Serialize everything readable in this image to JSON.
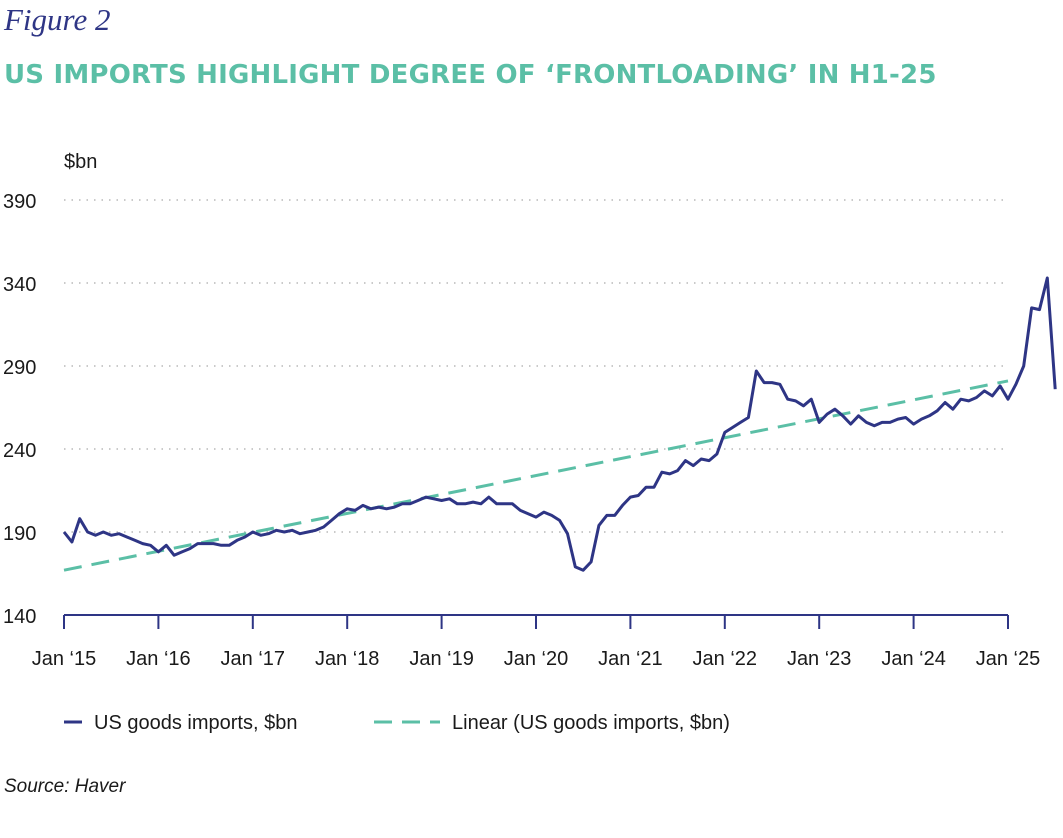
{
  "figure_label": "Figure 2",
  "title": "US IMPORTS HIGHLIGHT DEGREE OF ‘FRONTLOADING’ IN H1-25",
  "source": "Source: Haver",
  "colors": {
    "series": "#2e3585",
    "trend": "#5bbfa6",
    "grid": "#b8b8b8",
    "axis": "#2e3585"
  },
  "chart_data": {
    "type": "line",
    "ylabel": "$bn",
    "ylim": [
      140,
      390
    ],
    "yticks": [
      140,
      190,
      240,
      290,
      340,
      390
    ],
    "x_tick_labels": [
      "Jan ‘15",
      "Jan ‘16",
      "Jan ‘17",
      "Jan ‘18",
      "Jan ‘19",
      "Jan ‘20",
      "Jan ‘21",
      "Jan ‘22",
      "Jan ‘23",
      "Jan ‘24",
      "Jan ‘25"
    ],
    "x_tick_years": [
      2015,
      2016,
      2017,
      2018,
      2019,
      2020,
      2021,
      2022,
      2023,
      2024,
      2025
    ],
    "legend": [
      "US goods imports, $bn",
      "Linear (US goods imports, $bn)"
    ],
    "series": [
      {
        "name": "US goods imports, $bn",
        "style": "solid",
        "start": "2015-01",
        "values": [
          190,
          184,
          198,
          190,
          188,
          190,
          188,
          189,
          187,
          185,
          183,
          182,
          178,
          182,
          176,
          178,
          180,
          183,
          183,
          183,
          182,
          182,
          185,
          187,
          190,
          188,
          189,
          191,
          190,
          191,
          189,
          190,
          191,
          193,
          197,
          201,
          204,
          203,
          206,
          204,
          205,
          204,
          205,
          207,
          207,
          209,
          211,
          210,
          209,
          210,
          207,
          207,
          208,
          207,
          211,
          207,
          207,
          207,
          203,
          201,
          199,
          202,
          200,
          197,
          189,
          169,
          167,
          172,
          194,
          200,
          200,
          206,
          211,
          212,
          217,
          217,
          226,
          225,
          227,
          233,
          230,
          234,
          233,
          237,
          250,
          253,
          256,
          259,
          287,
          280,
          280,
          279,
          270,
          269,
          266,
          270,
          256,
          261,
          264,
          260,
          255,
          260,
          256,
          254,
          256,
          256,
          258,
          259,
          255,
          258,
          260,
          263,
          268,
          264,
          270,
          269,
          271,
          275,
          272,
          278,
          270,
          279,
          290,
          325,
          324,
          343,
          276
        ]
      },
      {
        "name": "Linear (US goods imports, $bn)",
        "style": "dashed",
        "start": "2015-01",
        "end": "2025-01",
        "values": [
          167,
          281
        ]
      }
    ]
  }
}
